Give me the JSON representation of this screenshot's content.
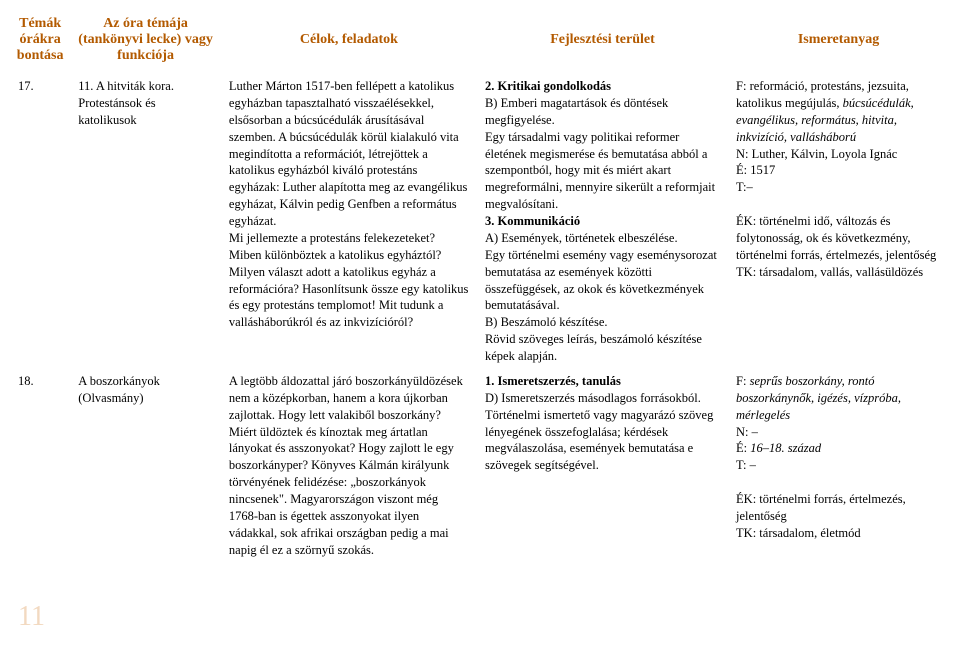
{
  "header": {
    "col1": "Témák órákra bontása",
    "col2": "Az óra témája (tankönyvi lecke) vagy funkciója",
    "col3": "Célok, feladatok",
    "col4": "Fejlesztési terület",
    "col5": "Ismeretanyag"
  },
  "rows": [
    {
      "num": "17.",
      "topic": "11. A hitviták kora. Protestánsok és katolikusok",
      "goals": "Luther Márton 1517-ben fellépett a katolikus egyházban tapasztalható visszaélésekkel, elsősorban a búcsúcédulák árusításával szemben. A búcsúcédulák körül kialakuló vita megindította a reformációt, létrejöttek a katolikus egyházból kiváló protestáns egyházak: Luther alapította meg az evangélikus egyházat, Kálvin pedig Genfben a református egyházat.\nMi jellemezte a protestáns felekezeteket? Miben különböztek a katolikus egyháztól? Milyen választ adott a katolikus egyház a reformációra? Hasonlítsunk össze egy katolikus és egy protestáns templomot! Mit tudunk a vallásháborúkról és az inkvizícióról?",
      "dev_head1": "2. Kritikai gondolkodás",
      "dev_b1": "B) Emberi magatartások és döntések megfigyelése.\nEgy társadalmi vagy politikai reformer életének megismerése és bemutatása abból a szempontból, hogy mit és miért akart megreformálni, mennyire sikerült a reformjait megvalósítani.",
      "dev_head2": "3. Kommunikáció",
      "dev_b2": "A) Események, történetek elbeszélése.\nEgy történelmi esemény vagy eseménysorozat bemutatása az események közötti összefüggések, az okok és következmények bemutatásával.\nB) Beszámoló készítése.\nRövid szöveges leírás, beszámoló készítése képek alapján.",
      "know_p1": "F: reformáció, protestáns, jezsuita, katolikus megújulás, ",
      "know_i1": "búcsúcédulák, evangélikus, református, hitvita, inkvizíció, vallásháború",
      "know_p2": "N: Luther, Kálvin, Loyola Ignác\nÉ: 1517\nT:–\n\nÉK: történelmi idő, változás és folytonosság, ok és következmény, történelmi forrás, értelmezés, jelentőség\nTK: társadalom, vallás, vallásüldözés"
    },
    {
      "num": "18.",
      "topic": "A boszorkányok (Olvasmány)",
      "goals": "A legtöbb áldozattal járó boszorkányüldözések nem a középkorban, hanem a kora újkorban zajlottak. Hogy lett valakiből boszorkány? Miért üldöztek és kínoztak meg ártatlan lányokat és asszonyokat? Hogy zajlott le egy boszorkányper? Könyves Kálmán királyunk törvényének felidézése: „boszorkányok nincsenek\". Magyarországon viszont még 1768-ban is égettek asszonyokat ilyen vádakkal, sok afrikai országban pedig a mai napig él ez a szörnyű szokás.",
      "dev_head1": "1. Ismeretszerzés, tanulás",
      "dev_b1": "D) Ismeretszerzés másodlagos forrásokból.\nTörténelmi ismertető vagy magyarázó szöveg lényegének összefoglalása; kérdések megválaszolása, események bemutatása e szövegek segítségével.",
      "dev_head2": "",
      "dev_b2": "",
      "know_p1": "F: ",
      "know_i1": "seprűs boszorkány, rontó boszorkánynők, igézés, vízpróba, mérlegelés",
      "know_p2": "N: –\nÉ: ",
      "know_i2": "16–18. század",
      "know_p3": "T: –\n\nÉK: történelmi forrás, értelmezés, jelentőség\nTK: társadalom, életmód"
    }
  ],
  "page_number": "11"
}
